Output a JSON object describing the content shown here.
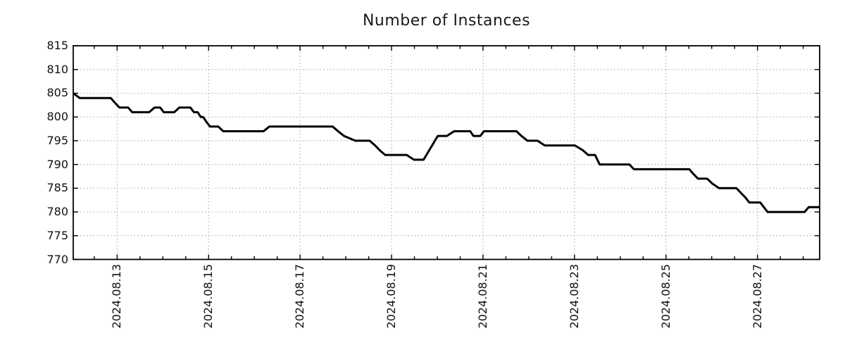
{
  "header": {
    "title": "Number of Instances"
  },
  "colors": {
    "line": "#000000",
    "grid": "#b3b3b3",
    "axis": "#000000",
    "background": "#ffffff",
    "text": "#111111"
  },
  "chart_data": {
    "type": "line",
    "title": "Number of Instances",
    "xlabel": "",
    "ylabel": "",
    "legend_shown": false,
    "grid": {
      "shown": true,
      "style": "dotted"
    },
    "x_axis": {
      "unit": "days since 2024-08-12 00:00",
      "min": 0.04,
      "max": 16.36,
      "minor_tick_step": 0.5,
      "major_ticks": [
        {
          "t": 1,
          "label": "2024.08.13"
        },
        {
          "t": 3,
          "label": "2024.08.15"
        },
        {
          "t": 5,
          "label": "2024.08.17"
        },
        {
          "t": 7,
          "label": "2024.08.19"
        },
        {
          "t": 9,
          "label": "2024.08.21"
        },
        {
          "t": 11,
          "label": "2024.08.23"
        },
        {
          "t": 13,
          "label": "2024.08.25"
        },
        {
          "t": 15,
          "label": "2024.08.27"
        }
      ]
    },
    "y_axis": {
      "min": 770,
      "max": 815,
      "tick_step": 5,
      "ticks": [
        770,
        775,
        780,
        785,
        790,
        795,
        800,
        805,
        810,
        815
      ]
    },
    "series": [
      {
        "name": "instances",
        "color": "#000000",
        "line_width": 3,
        "points": [
          [
            0.04,
            805
          ],
          [
            0.18,
            804
          ],
          [
            0.86,
            804
          ],
          [
            0.95,
            803
          ],
          [
            1.05,
            802
          ],
          [
            1.24,
            802
          ],
          [
            1.33,
            801
          ],
          [
            1.7,
            801
          ],
          [
            1.82,
            802
          ],
          [
            1.94,
            802
          ],
          [
            2.02,
            801
          ],
          [
            2.25,
            801
          ],
          [
            2.36,
            802
          ],
          [
            2.6,
            802
          ],
          [
            2.68,
            801
          ],
          [
            2.76,
            801
          ],
          [
            2.83,
            800
          ],
          [
            2.88,
            800
          ],
          [
            2.95,
            799
          ],
          [
            3.03,
            798
          ],
          [
            3.21,
            798
          ],
          [
            3.32,
            797
          ],
          [
            4.2,
            797
          ],
          [
            4.33,
            798
          ],
          [
            5.71,
            798
          ],
          [
            5.83,
            797
          ],
          [
            5.96,
            796
          ],
          [
            6.21,
            795
          ],
          [
            6.52,
            795
          ],
          [
            6.64,
            794
          ],
          [
            6.74,
            793
          ],
          [
            6.86,
            792
          ],
          [
            7.33,
            792
          ],
          [
            7.49,
            791
          ],
          [
            7.7,
            791
          ],
          [
            8.01,
            796
          ],
          [
            8.21,
            796
          ],
          [
            8.37,
            797
          ],
          [
            8.72,
            797
          ],
          [
            8.79,
            796
          ],
          [
            8.94,
            796
          ],
          [
            9.02,
            797
          ],
          [
            9.73,
            797
          ],
          [
            9.84,
            796
          ],
          [
            9.97,
            795
          ],
          [
            10.19,
            795
          ],
          [
            10.35,
            794
          ],
          [
            11.01,
            794
          ],
          [
            11.18,
            793
          ],
          [
            11.3,
            792
          ],
          [
            11.45,
            792
          ],
          [
            11.5,
            791
          ],
          [
            11.55,
            790
          ],
          [
            12.2,
            790
          ],
          [
            12.3,
            789
          ],
          [
            13.51,
            789
          ],
          [
            13.6,
            788
          ],
          [
            13.7,
            787
          ],
          [
            13.9,
            787
          ],
          [
            14.01,
            786
          ],
          [
            14.16,
            785
          ],
          [
            14.54,
            785
          ],
          [
            14.64,
            784
          ],
          [
            14.74,
            783
          ],
          [
            14.82,
            782
          ],
          [
            15.06,
            782
          ],
          [
            15.14,
            781
          ],
          [
            15.22,
            780
          ],
          [
            16.03,
            780
          ],
          [
            16.12,
            781
          ],
          [
            16.36,
            781
          ]
        ]
      }
    ]
  }
}
